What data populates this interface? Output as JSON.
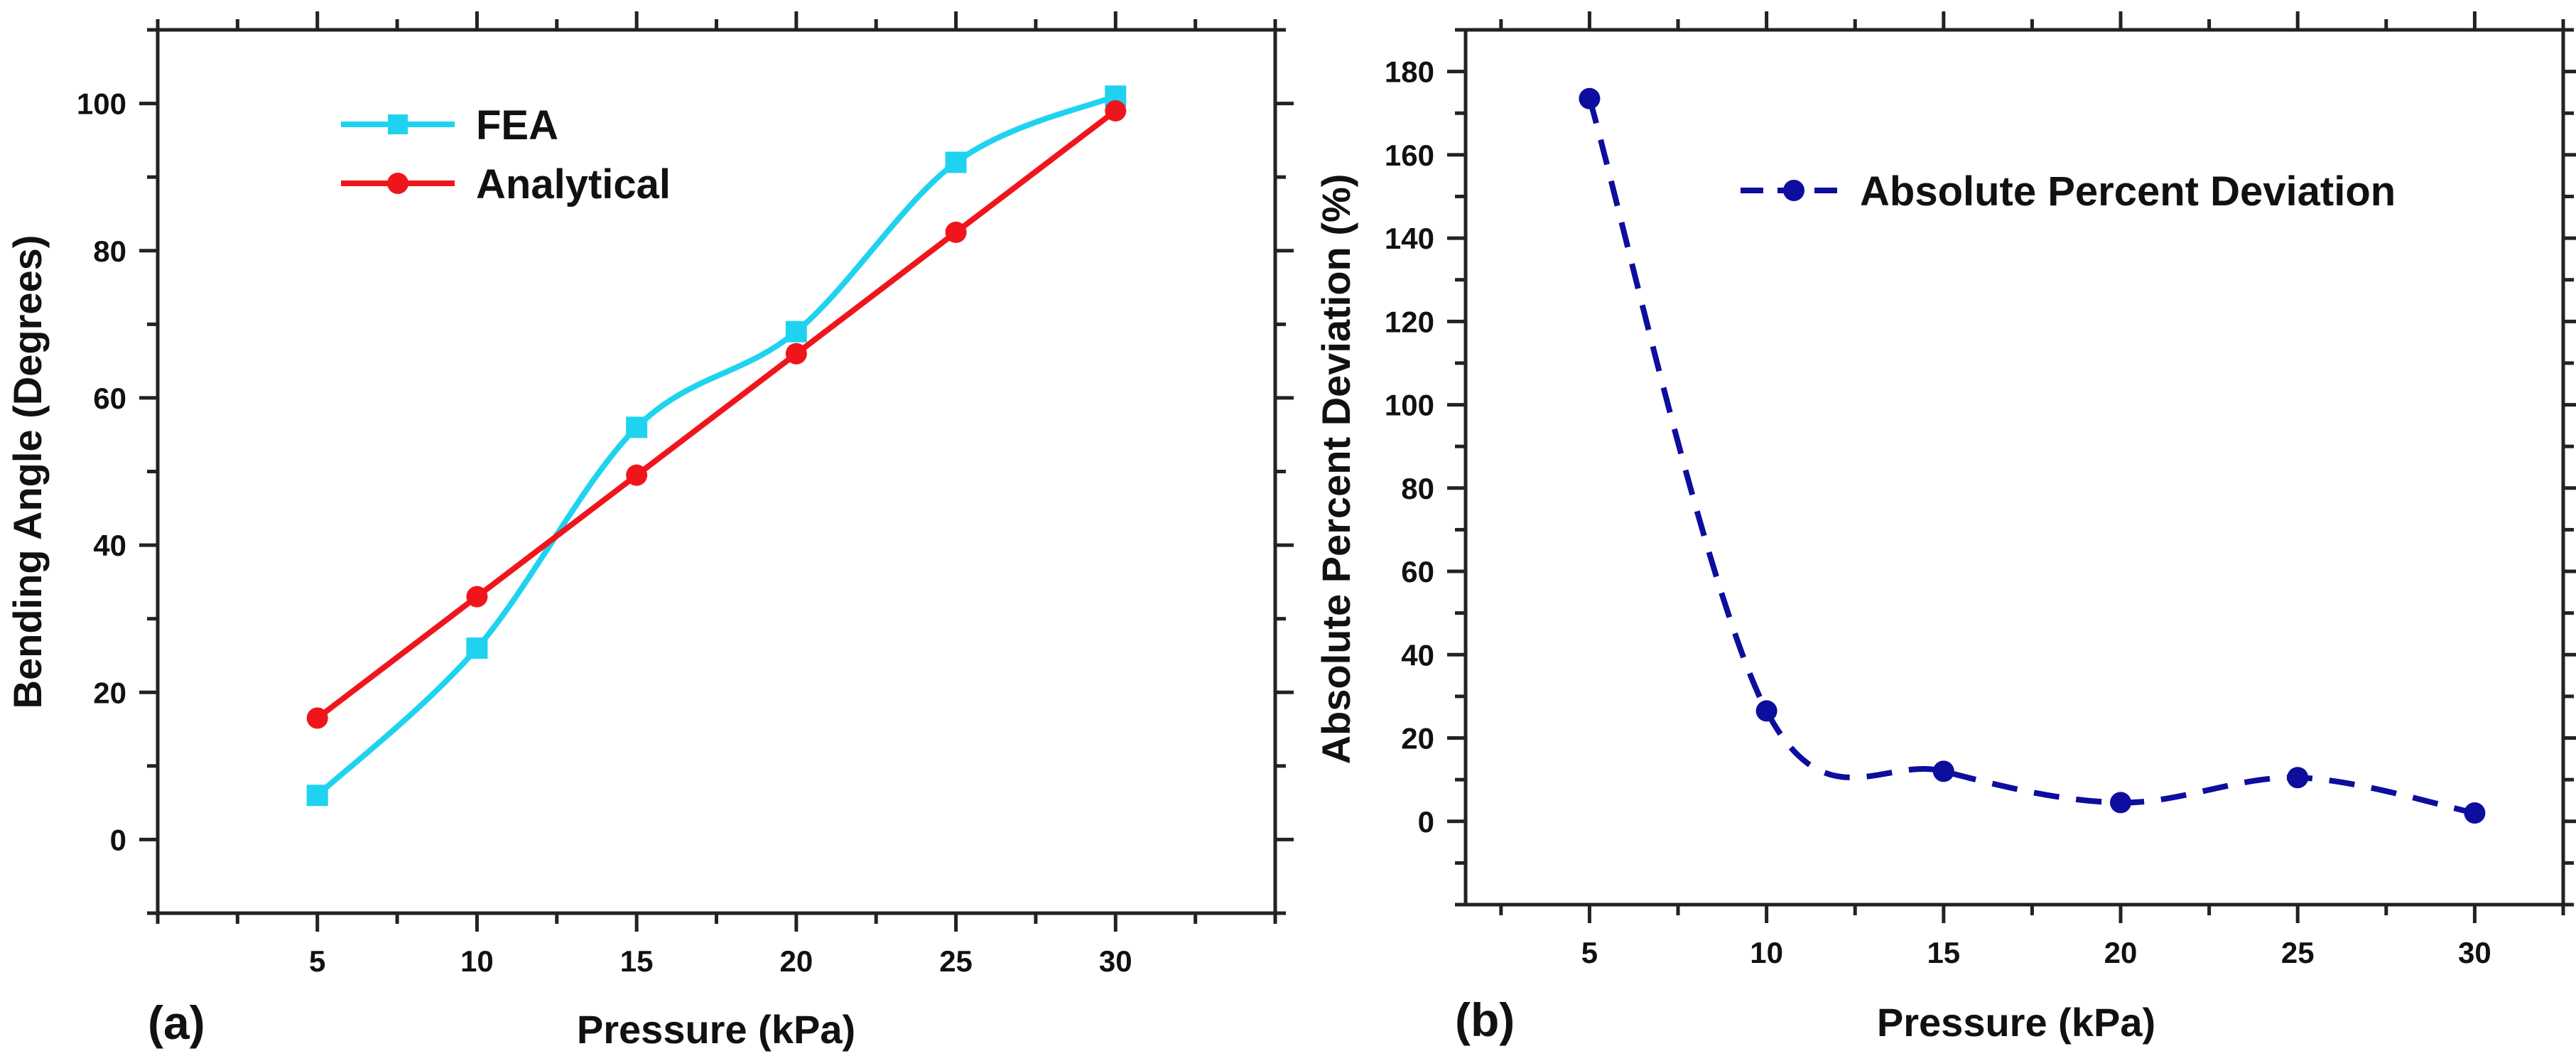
{
  "chart_data": [
    {
      "panel": "(a)",
      "type": "line",
      "xlabel": "Pressure (kPa)",
      "ylabel": "Bending Angle (Degrees)",
      "xlim": [
        0,
        35
      ],
      "ylim": [
        -10,
        110
      ],
      "x_ticks": [
        5,
        10,
        15,
        20,
        25,
        30
      ],
      "y_ticks": [
        0,
        20,
        40,
        60,
        80,
        100
      ],
      "x": [
        5,
        10,
        15,
        20,
        25,
        30
      ],
      "series": [
        {
          "name": "FEA",
          "values": [
            6,
            26,
            56,
            69,
            92,
            101
          ],
          "color": "#1fd3f0",
          "marker": "square",
          "line": "smooth"
        },
        {
          "name": "Analytical",
          "values": [
            16.5,
            33,
            49.5,
            66,
            82.5,
            99
          ],
          "color": "#f0151c",
          "marker": "circle",
          "line": "straight"
        }
      ],
      "legend": "top-left"
    },
    {
      "panel": "(b)",
      "type": "line",
      "xlabel": "Pressure (kPa)",
      "ylabel": "Absolute Percent Deviation (%)",
      "xlim": [
        1.5,
        32.5
      ],
      "ylim": [
        -20,
        190
      ],
      "x_ticks": [
        5,
        10,
        15,
        20,
        25,
        30
      ],
      "y_ticks": [
        0,
        20,
        40,
        60,
        80,
        100,
        120,
        140,
        160,
        180
      ],
      "x": [
        5,
        10,
        15,
        20,
        25,
        30
      ],
      "series": [
        {
          "name": "Absolute Percent Deviation",
          "values": [
            173.5,
            26.5,
            12,
            4.5,
            10.5,
            2
          ],
          "color": "#0d0d9e",
          "marker": "circle",
          "line": "dashed-smooth"
        }
      ],
      "legend": "top-right"
    }
  ]
}
